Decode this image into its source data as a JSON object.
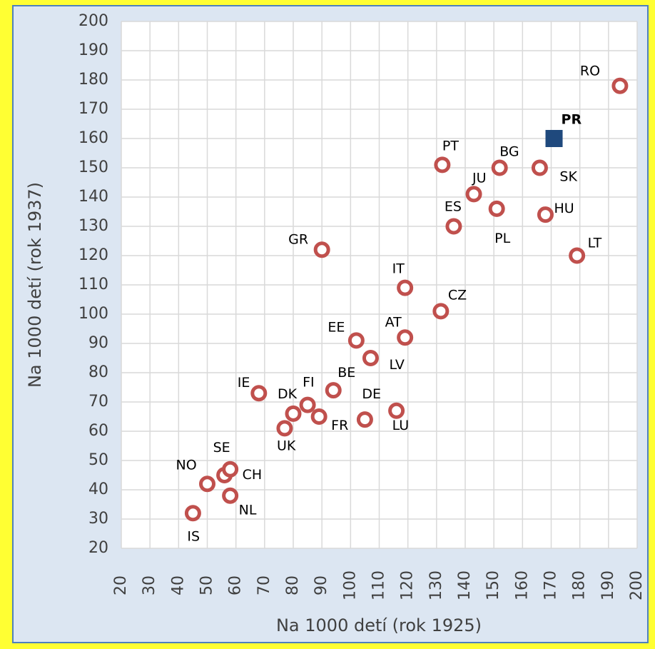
{
  "chart_data": {
    "type": "scatter",
    "x_label": "Na 1000 detí (rok 1925)",
    "y_label": "Na 1000 detí (rok 1937)",
    "xlim": [
      20,
      200
    ],
    "ylim": [
      20,
      200
    ],
    "xticks": [
      20,
      30,
      40,
      50,
      60,
      70,
      80,
      90,
      100,
      110,
      120,
      130,
      140,
      150,
      160,
      170,
      180,
      190,
      200
    ],
    "yticks": [
      20,
      30,
      40,
      50,
      60,
      70,
      80,
      90,
      100,
      110,
      120,
      130,
      140,
      150,
      160,
      170,
      180,
      190,
      200
    ],
    "grid": true,
    "series": [
      {
        "color": "#c0504d",
        "marker": "circle",
        "labels": [
          "RO",
          "PT",
          "BG",
          "SK",
          "JU",
          "PL",
          "HU",
          "ES",
          "LT",
          "GR",
          "IT",
          "CZ",
          "EE",
          "AT",
          "LV",
          "BE",
          "IE",
          "DK",
          "FI",
          "FR",
          "DE",
          "LU",
          "UK",
          "SE",
          "CH",
          "NO",
          "NL",
          "IS"
        ],
        "x": [
          194,
          132,
          152,
          166,
          143,
          151,
          168,
          136,
          179,
          90,
          119,
          131.5,
          102,
          119,
          107,
          94,
          68,
          80,
          85,
          89,
          105,
          116,
          77,
          56,
          58,
          50,
          58,
          45
        ],
        "y": [
          178,
          151,
          150,
          150,
          141,
          136,
          134,
          130,
          120,
          122,
          109,
          101,
          91,
          92,
          85,
          74,
          73,
          66,
          69,
          65,
          64,
          67,
          61,
          45,
          47,
          42,
          38,
          32
        ]
      },
      {
        "color": "#1f497d",
        "marker": "square",
        "labels": [
          "PR"
        ],
        "x": [
          171
        ],
        "y": [
          160
        ]
      }
    ]
  }
}
